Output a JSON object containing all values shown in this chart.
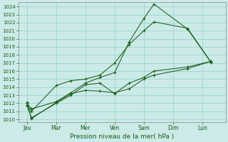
{
  "xlabel": "Pression niveau de la mer( hPa )",
  "ylim": [
    1009.7,
    1024.5
  ],
  "yticks": [
    1010,
    1011,
    1012,
    1013,
    1014,
    1015,
    1016,
    1017,
    1018,
    1019,
    1020,
    1021,
    1022,
    1023,
    1024
  ],
  "xtick_labels": [
    "Jeu",
    "Mar",
    "Mer",
    "Ven",
    "Sam",
    "Dim",
    "Lun"
  ],
  "background_color": "#cceae7",
  "grid_color": "#99d5d0",
  "line_color": "#1a5c1a",
  "series1_x": [
    0.0,
    0.15,
    1.0,
    1.5,
    2.0,
    2.5,
    3.0,
    3.5,
    4.0,
    4.35,
    5.5,
    6.3
  ],
  "series1_y": [
    1011.8,
    1011.0,
    1014.2,
    1014.8,
    1015.0,
    1015.5,
    1017.0,
    1019.3,
    1021.0,
    1022.1,
    1021.3,
    1017.1
  ],
  "series2_x": [
    0.0,
    0.15,
    1.0,
    1.5,
    2.0,
    2.5,
    3.0,
    3.5,
    4.0,
    4.35,
    5.5,
    6.3
  ],
  "series2_y": [
    1012.0,
    1011.3,
    1012.2,
    1013.3,
    1014.5,
    1015.2,
    1015.8,
    1019.6,
    1022.5,
    1024.3,
    1021.2,
    1017.1
  ],
  "series3_x": [
    0.0,
    0.15,
    1.0,
    1.5,
    2.0,
    2.5,
    3.0,
    3.5,
    4.0,
    4.35,
    5.5,
    6.3
  ],
  "series3_y": [
    1011.7,
    1010.2,
    1012.0,
    1013.0,
    1014.3,
    1014.5,
    1013.2,
    1014.5,
    1015.2,
    1016.0,
    1016.5,
    1017.2
  ],
  "series4_x": [
    0.0,
    0.15,
    1.0,
    1.5,
    2.0,
    2.5,
    3.0,
    3.5,
    4.0,
    4.35,
    5.5,
    6.3
  ],
  "series4_y": [
    1012.1,
    1010.1,
    1012.1,
    1013.2,
    1013.6,
    1013.5,
    1013.3,
    1013.8,
    1015.0,
    1015.5,
    1016.3,
    1017.2
  ]
}
